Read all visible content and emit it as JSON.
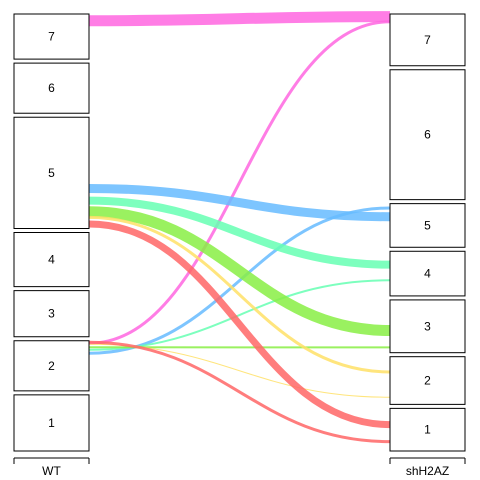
{
  "chart_data": {
    "type": "alluvial",
    "axes": [
      "WT",
      "shH2AZ"
    ],
    "left_nodes": [
      {
        "label": "1",
        "size": 56
      },
      {
        "label": "2",
        "size": 50
      },
      {
        "label": "3",
        "size": 46
      },
      {
        "label": "4",
        "size": 54
      },
      {
        "label": "5",
        "size": 111
      },
      {
        "label": "6",
        "size": 50
      },
      {
        "label": "7",
        "size": 45
      }
    ],
    "right_nodes": [
      {
        "label": "1",
        "size": 42
      },
      {
        "label": "2",
        "size": 47
      },
      {
        "label": "3",
        "size": 52
      },
      {
        "label": "4",
        "size": 44
      },
      {
        "label": "5",
        "size": 43
      },
      {
        "label": "6",
        "size": 128
      },
      {
        "label": "7",
        "size": 51
      }
    ],
    "flows": [
      {
        "from": "7",
        "to": "7",
        "weight": 11,
        "color": "#ff66e0"
      },
      {
        "from": "2",
        "to": "7",
        "weight": 3,
        "color": "#ff66e0"
      },
      {
        "from": "5",
        "to": "5",
        "weight": 9,
        "color": "#66bbff"
      },
      {
        "from": "2",
        "to": "5",
        "weight": 3,
        "color": "#66bbff"
      },
      {
        "from": "5",
        "to": "4",
        "weight": 8,
        "color": "#66ffb3"
      },
      {
        "from": "2",
        "to": "4",
        "weight": 2,
        "color": "#66ffb3"
      },
      {
        "from": "5",
        "to": "3",
        "weight": 11,
        "color": "#88ee44"
      },
      {
        "from": "2",
        "to": "3",
        "weight": 2,
        "color": "#88ee44"
      },
      {
        "from": "5",
        "to": "2",
        "weight": 3,
        "color": "#ffe066"
      },
      {
        "from": "2",
        "to": "2",
        "weight": 1,
        "color": "#ffe066"
      },
      {
        "from": "5",
        "to": "1",
        "weight": 7,
        "color": "#ff6666"
      },
      {
        "from": "2",
        "to": "1",
        "weight": 3,
        "color": "#ff6666"
      }
    ]
  }
}
